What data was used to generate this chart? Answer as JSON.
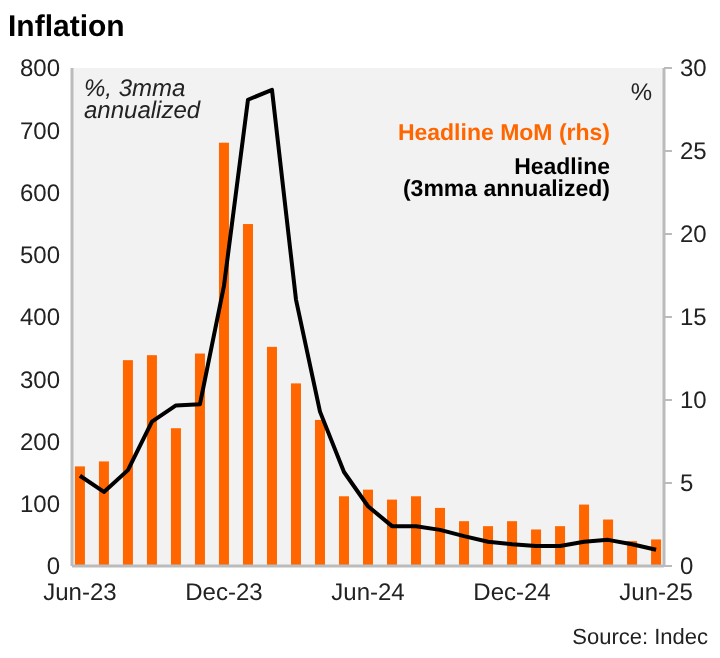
{
  "chart_data": {
    "type": "bar",
    "title": "Inflation",
    "ylabel": "%, 3mma annualized",
    "y2label": "%",
    "categories": [
      "Jun-23",
      null,
      null,
      null,
      null,
      null,
      "Dec-23",
      null,
      null,
      null,
      null,
      null,
      "Jun-24",
      null,
      null,
      null,
      null,
      null,
      "Dec-24",
      null,
      null,
      null,
      null,
      null,
      "Jun-25"
    ],
    "series": [
      {
        "name": "Headline MoM (rhs)",
        "axis": "y2",
        "color": "#ff6600",
        "values": [
          6.0,
          6.3,
          12.4,
          12.7,
          8.3,
          12.8,
          25.5,
          20.6,
          13.2,
          11.0,
          8.8,
          4.2,
          4.6,
          4.0,
          4.2,
          3.5,
          2.7,
          2.4,
          2.7,
          2.2,
          2.4,
          3.7,
          2.8,
          1.5,
          1.6
        ]
      },
      {
        "name": "Headline (3mma annualized)",
        "type": "line",
        "color": "#000000",
        "values": [
          145,
          119,
          154,
          232,
          258,
          260,
          450,
          749,
          765,
          428,
          248,
          151,
          96,
          64,
          64,
          58,
          48,
          39,
          35,
          32,
          32,
          39,
          42,
          35,
          26
        ]
      }
    ],
    "ylim": [
      0,
      800
    ],
    "yticks": [
      0,
      100,
      200,
      300,
      400,
      500,
      600,
      700,
      800
    ],
    "y2lim": [
      0,
      30
    ],
    "y2ticks": [
      0,
      5,
      10,
      15,
      20,
      25,
      30
    ],
    "legend": "top right",
    "grid": false,
    "marker": "none",
    "line_style": "solid",
    "annotations": [
      "Source: Indec"
    ]
  }
}
